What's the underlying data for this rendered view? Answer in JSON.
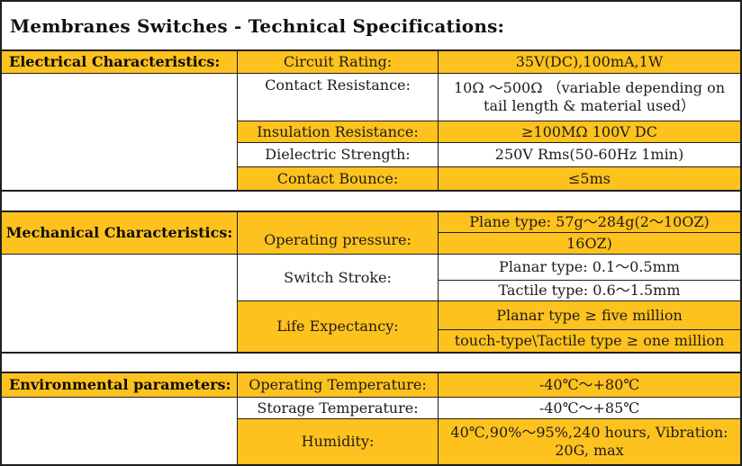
{
  "page": {
    "title": "Membranes Switches - Technical Specifications:"
  },
  "colors": {
    "accent_yellow": "#FEC21F",
    "border": "#1F1F1F",
    "text": "#201C15"
  },
  "sections": [
    {
      "label": "Electrical Characteristics:",
      "rows": [
        {
          "param": "Circuit Rating:",
          "value": "35V(DC),100mA,1W",
          "highlight": true
        },
        {
          "param": "Contact Resistance:",
          "value": "10Ω ～500Ω （variable depending on tail length & material used）",
          "highlight": false
        },
        {
          "param": "Insulation Resistance:",
          "value": "≥100MΩ 100V DC",
          "highlight": true
        },
        {
          "param": "Dielectric Strength:",
          "value": "250V Rms(50-60Hz 1min)",
          "highlight": false
        },
        {
          "param": "Contact Bounce:",
          "value": "≤5ms",
          "highlight": true
        }
      ]
    },
    {
      "label": "Mechanical Characteristics:",
      "rows": [
        {
          "param": "Operating pressure:",
          "values": [
            "Plane type: 57g～284g(2～10OZ)",
            "16OZ)"
          ],
          "highlight": true
        },
        {
          "param": "Switch Stroke:",
          "values": [
            "Planar type: 0.1～0.5mm",
            "Tactile type: 0.6～1.5mm"
          ],
          "highlight": false
        },
        {
          "param": "Life Expectancy:",
          "values": [
            "Planar type ≥ five million",
            "touch-type\\Tactile type ≥ one million"
          ],
          "highlight": true
        }
      ]
    },
    {
      "label": "Environmental parameters:",
      "rows": [
        {
          "param": "Operating Temperature:",
          "value": "-40℃～+80℃",
          "highlight": true
        },
        {
          "param": "Storage Temperature:",
          "value": "-40℃～+85℃",
          "highlight": false
        },
        {
          "param": "Humidity:",
          "value": "40℃,90%～95%,240 hours, Vibration: 20G, max",
          "highlight": true
        }
      ]
    }
  ]
}
